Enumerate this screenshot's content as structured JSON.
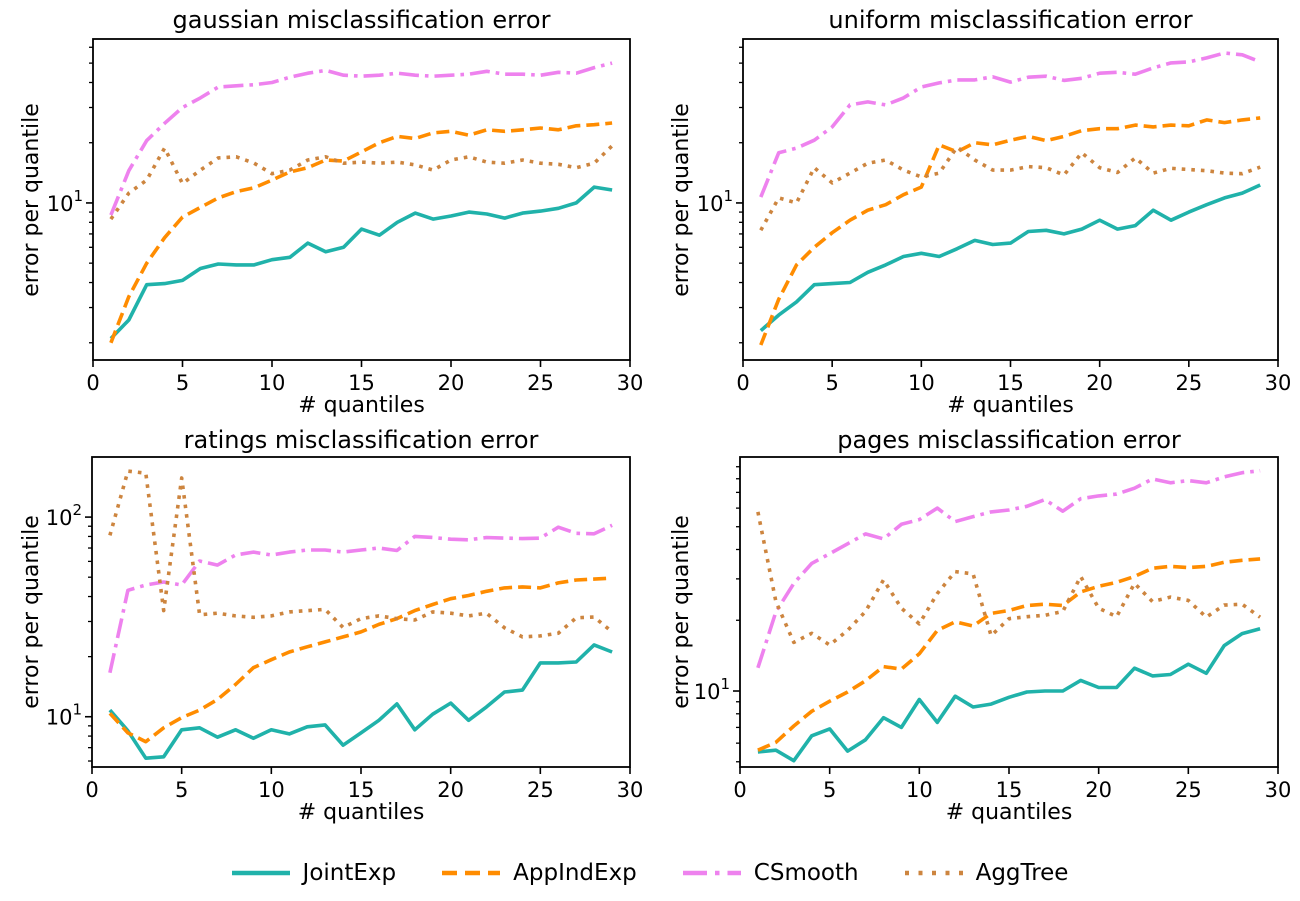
{
  "figure": {
    "background": "#ffffff",
    "axis_color": "#000000"
  },
  "legend": {
    "items": [
      {
        "label": "JointExp",
        "color": "#20B2AA",
        "dash": "solid"
      },
      {
        "label": "AppIndExp",
        "color": "#FF8C00",
        "dash": "dashed"
      },
      {
        "label": "CSmooth",
        "color": "#EE82EE",
        "dash": "dashdot"
      },
      {
        "label": "AggTree",
        "color": "#CD853F",
        "dash": "dotted"
      }
    ]
  },
  "chart_data": [
    {
      "type": "line",
      "id": "gaussian",
      "title": "gaussian misclassification error",
      "xlabel": "# quantiles",
      "ylabel": "error per quantile",
      "x_range": [
        0,
        30
      ],
      "x_ticks": [
        0,
        5,
        10,
        15,
        20,
        25,
        30
      ],
      "y_scale": "log",
      "y_range": [
        1.64,
        66
      ],
      "y_labeled_ticks": [
        "10^1"
      ],
      "grid": false,
      "x": [
        1,
        2,
        3,
        4,
        5,
        6,
        7,
        8,
        9,
        10,
        11,
        12,
        13,
        14,
        15,
        16,
        17,
        18,
        19,
        20,
        21,
        22,
        23,
        24,
        25,
        26,
        27,
        28,
        29
      ],
      "series": [
        {
          "name": "JointExp",
          "color": "#20B2AA",
          "dash": "solid",
          "values": [
            2.1,
            2.6,
            3.9,
            3.95,
            4.1,
            4.7,
            4.95,
            4.9,
            4.9,
            5.2,
            5.35,
            6.3,
            5.7,
            6.0,
            7.4,
            6.9,
            8.0,
            8.9,
            8.3,
            8.6,
            9.0,
            8.8,
            8.4,
            8.9,
            9.1,
            9.4,
            10.0,
            12.0,
            11.6
          ]
        },
        {
          "name": "AppIndExp",
          "color": "#FF8C00",
          "dash": "dashed",
          "values": [
            2.0,
            3.4,
            5.0,
            6.7,
            8.5,
            9.5,
            10.6,
            11.4,
            11.9,
            13.0,
            14.3,
            15.0,
            16.4,
            16.2,
            18.0,
            20.0,
            21.5,
            21.0,
            22.4,
            22.8,
            21.8,
            23.2,
            22.8,
            23.2,
            23.7,
            23.2,
            24.3,
            24.6,
            25.1
          ]
        },
        {
          "name": "CSmooth",
          "color": "#EE82EE",
          "dash": "dashdot",
          "values": [
            8.7,
            14.5,
            20.5,
            25,
            30,
            33.5,
            38,
            38.5,
            39,
            40,
            42.5,
            44.5,
            46,
            43.5,
            43,
            43.5,
            44.5,
            43.5,
            43,
            43.5,
            44,
            45.5,
            44,
            44,
            43.5,
            45,
            44.5,
            47.5,
            50
          ]
        },
        {
          "name": "AggTree",
          "color": "#CD853F",
          "dash": "dotted",
          "values": [
            8.3,
            11.2,
            13.0,
            18.8,
            12.5,
            14.6,
            16.8,
            17.0,
            15.8,
            14.0,
            14.6,
            16.4,
            17.0,
            15.8,
            16.0,
            15.8,
            16.0,
            15.5,
            14.6,
            16.4,
            17.0,
            16.0,
            15.8,
            16.4,
            15.8,
            15.6,
            15.0,
            15.8,
            19.3
          ]
        }
      ]
    },
    {
      "type": "line",
      "id": "uniform",
      "title": "uniform misclassification error",
      "xlabel": "# quantiles",
      "ylabel": "error per quantile",
      "x_range": [
        0,
        30
      ],
      "x_ticks": [
        0,
        5,
        10,
        15,
        20,
        25,
        30
      ],
      "y_scale": "log",
      "y_range": [
        1.64,
        66
      ],
      "y_labeled_ticks": [
        "10^1"
      ],
      "grid": false,
      "x": [
        1,
        2,
        3,
        4,
        5,
        6,
        7,
        8,
        9,
        10,
        11,
        12,
        13,
        14,
        15,
        16,
        17,
        18,
        19,
        20,
        21,
        22,
        23,
        24,
        25,
        26,
        27,
        28,
        29
      ],
      "series": [
        {
          "name": "JointExp",
          "color": "#20B2AA",
          "dash": "solid",
          "values": [
            2.3,
            2.75,
            3.2,
            3.9,
            3.95,
            4.0,
            4.5,
            4.9,
            5.4,
            5.6,
            5.4,
            5.9,
            6.5,
            6.2,
            6.3,
            7.2,
            7.3,
            7.0,
            7.4,
            8.2,
            7.4,
            7.7,
            9.2,
            8.2,
            9.0,
            9.8,
            10.6,
            11.2,
            12.3
          ]
        },
        {
          "name": "AppIndExp",
          "color": "#FF8C00",
          "dash": "dashed",
          "values": [
            1.95,
            3.3,
            4.9,
            6.0,
            7.1,
            8.2,
            9.2,
            9.8,
            11.0,
            12.0,
            19.5,
            18.0,
            20.0,
            19.5,
            20.6,
            21.5,
            20.5,
            21.5,
            23.0,
            23.5,
            23.5,
            24.5,
            24.0,
            24.5,
            24.3,
            26.0,
            25.2,
            26.0,
            26.6
          ]
        },
        {
          "name": "CSmooth",
          "color": "#EE82EE",
          "dash": "dashdot",
          "values": [
            10.7,
            17.8,
            18.8,
            20.6,
            24.0,
            30.9,
            32.0,
            30.9,
            33.5,
            38.0,
            39.8,
            41.2,
            41.2,
            42.7,
            40.2,
            42.5,
            43.0,
            41.0,
            42.0,
            44.5,
            45.0,
            44.0,
            47.3,
            50.1,
            50.7,
            53.1,
            56.2,
            55.0,
            50.7
          ]
        },
        {
          "name": "AggTree",
          "color": "#CD853F",
          "dash": "dotted",
          "values": [
            7.3,
            10.6,
            10.0,
            15.0,
            12.6,
            14.1,
            15.8,
            16.4,
            14.6,
            13.5,
            14.1,
            19.0,
            16.4,
            14.6,
            14.6,
            15.2,
            15.0,
            13.8,
            17.8,
            15.0,
            14.2,
            16.8,
            14.1,
            14.9,
            14.7,
            14.5,
            14.1,
            14.0,
            15.1
          ]
        }
      ]
    },
    {
      "type": "line",
      "id": "ratings",
      "title": "ratings misclassification error",
      "xlabel": "# quantiles",
      "ylabel": "error per quantile",
      "x_range": [
        0,
        30
      ],
      "x_ticks": [
        0,
        5,
        10,
        15,
        20,
        25,
        30
      ],
      "y_scale": "log",
      "y_range": [
        5.6,
        200
      ],
      "y_labeled_ticks": [
        "10^1",
        "10^2"
      ],
      "grid": false,
      "x": [
        1,
        2,
        3,
        4,
        5,
        6,
        7,
        8,
        9,
        10,
        11,
        12,
        13,
        14,
        15,
        16,
        17,
        18,
        19,
        20,
        21,
        22,
        23,
        24,
        25,
        26,
        27,
        28,
        29
      ],
      "series": [
        {
          "name": "JointExp",
          "color": "#20B2AA",
          "dash": "solid",
          "values": [
            10.8,
            8.5,
            6.2,
            6.3,
            8.6,
            8.8,
            7.9,
            8.6,
            7.8,
            8.6,
            8.2,
            8.9,
            9.1,
            7.2,
            8.3,
            9.6,
            11.6,
            8.6,
            10.3,
            11.7,
            9.6,
            11.2,
            13.3,
            13.6,
            18.6,
            18.6,
            18.8,
            22.9,
            21.1
          ]
        },
        {
          "name": "AppIndExp",
          "color": "#FF8C00",
          "dash": "dashed",
          "values": [
            10.4,
            8.3,
            7.5,
            8.8,
            9.9,
            10.8,
            12.2,
            14.5,
            17.6,
            19.3,
            21.1,
            22.4,
            23.7,
            25.1,
            26.6,
            29,
            31,
            34,
            36.5,
            39,
            40.5,
            42.5,
            44.2,
            44.7,
            44.2,
            46.8,
            48.4,
            48.9,
            49.5
          ]
        },
        {
          "name": "CSmooth",
          "color": "#EE82EE",
          "dash": "dashdot",
          "values": [
            16.6,
            43,
            45.7,
            47.3,
            45.7,
            60.3,
            57.5,
            64.6,
            66.8,
            64.6,
            66.8,
            68.4,
            68.4,
            66.8,
            68.4,
            70,
            68,
            80,
            79,
            77.5,
            77,
            79,
            78.5,
            78,
            78.5,
            89,
            83,
            82.5,
            91
          ]
        },
        {
          "name": "AggTree",
          "color": "#CD853F",
          "dash": "dotted",
          "values": [
            81,
            170,
            166,
            34,
            157,
            32.4,
            33,
            32,
            31.5,
            32,
            33.5,
            34,
            34.5,
            28,
            31,
            32,
            31,
            30.5,
            33.5,
            33,
            32,
            33,
            27.9,
            25.1,
            25.4,
            26.2,
            31.3,
            31.6,
            26.6
          ]
        }
      ]
    },
    {
      "type": "line",
      "id": "pages",
      "title": "pages misclassification error",
      "xlabel": "# quantiles",
      "ylabel": "error per quantile",
      "x_range": [
        0,
        30
      ],
      "x_ticks": [
        0,
        5,
        10,
        15,
        20,
        25,
        30
      ],
      "y_scale": "log",
      "y_range": [
        4.75,
        99
      ],
      "y_labeled_ticks": [
        "10^1"
      ],
      "grid": false,
      "x": [
        1,
        2,
        3,
        4,
        5,
        6,
        7,
        8,
        9,
        10,
        11,
        12,
        13,
        14,
        15,
        16,
        17,
        18,
        19,
        20,
        21,
        22,
        23,
        24,
        25,
        26,
        27,
        28,
        29
      ],
      "series": [
        {
          "name": "JointExp",
          "color": "#20B2AA",
          "dash": "solid",
          "values": [
            5.5,
            5.6,
            5.05,
            6.45,
            6.9,
            5.55,
            6.2,
            7.7,
            7.0,
            9.2,
            7.35,
            9.5,
            8.55,
            8.8,
            9.4,
            9.9,
            10.0,
            10.0,
            11.1,
            10.35,
            10.35,
            12.5,
            11.6,
            11.75,
            13.0,
            11.9,
            15.6,
            17.55,
            18.4
          ]
        },
        {
          "name": "AppIndExp",
          "color": "#FF8C00",
          "dash": "dashed",
          "values": [
            5.6,
            6.05,
            7.1,
            8.2,
            9.05,
            9.9,
            11.05,
            12.7,
            12.4,
            14.4,
            18.1,
            19.7,
            18.9,
            21.4,
            22.0,
            23.1,
            23.4,
            23.1,
            26.4,
            27.9,
            29.0,
            30.7,
            33.3,
            33.9,
            33.5,
            33.9,
            35.3,
            36.0,
            36.5
          ]
        },
        {
          "name": "CSmooth",
          "color": "#EE82EE",
          "dash": "dashdot",
          "values": [
            12.55,
            21.7,
            28.7,
            34.9,
            38.4,
            42.3,
            46.6,
            44.4,
            51.2,
            53.6,
            60.0,
            52.6,
            55.2,
            57.8,
            58.9,
            61.1,
            65.2,
            58.2,
            65.8,
            67.6,
            68.8,
            72.9,
            79.8,
            76.9,
            78.6,
            76.9,
            81.5,
            84.9,
            86.6
          ]
        },
        {
          "name": "AggTree",
          "color": "#CD853F",
          "dash": "dotted",
          "values": [
            57.8,
            24.0,
            16.1,
            17.6,
            15.7,
            18.1,
            21.8,
            29.7,
            22.5,
            19.3,
            26.0,
            32.2,
            31.5,
            17.2,
            20.3,
            20.7,
            21.0,
            21.8,
            30.7,
            22.5,
            20.7,
            28.7,
            24.0,
            25.1,
            24.3,
            20.6,
            23.2,
            23.4,
            20.6
          ]
        }
      ]
    }
  ]
}
